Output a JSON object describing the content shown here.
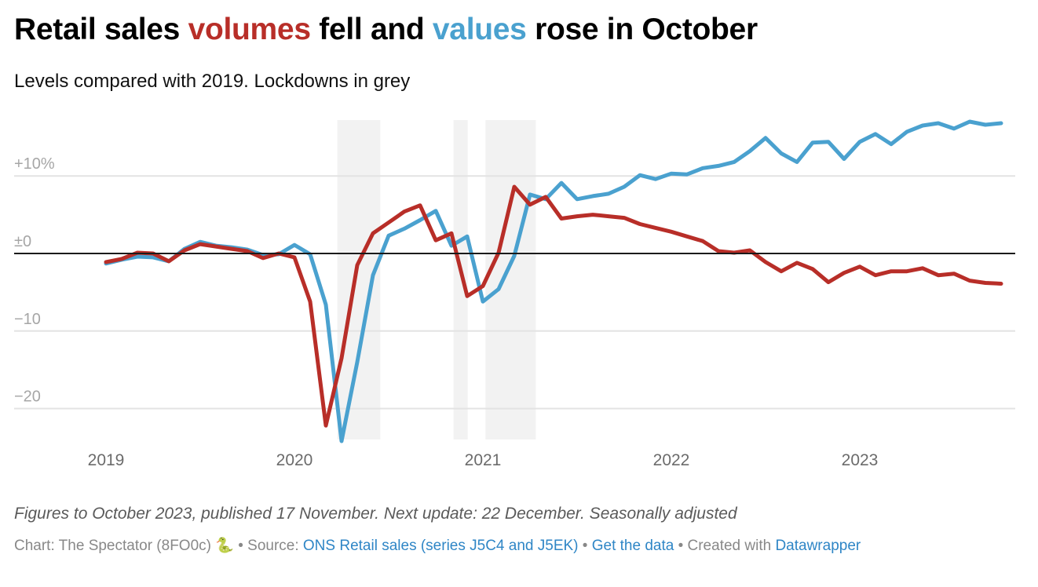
{
  "header": {
    "title_parts": [
      "Retail sales ",
      "volumes",
      " fell and ",
      "values",
      " rose in October"
    ],
    "subtitle": "Levels compared with 2019. Lockdowns in grey"
  },
  "notes": "Figures to October 2023, published 17 November. Next update: 22 December. Seasonally adjusted",
  "footer": {
    "chart_credit": "Chart: The Spectator (8FO0c)",
    "emoji": "🐍",
    "sep1": " • Source: ",
    "source_link": "ONS Retail sales (series J5C4 and J5EK)",
    "sep2": " • ",
    "data_link": "Get the data",
    "sep3": " • Created with ",
    "tool_link": "Datawrapper"
  },
  "colors": {
    "volumes": "#b82e28",
    "values": "#4aa1cf",
    "lockdown": "#f2f2f2",
    "grid": "#e3e3e3",
    "zero": "#1a1a1a"
  },
  "chart_data": {
    "type": "line",
    "title": "Retail sales volumes fell and values rose in October",
    "subtitle": "Levels compared with 2019. Lockdowns in grey",
    "xlabel": "",
    "ylabel": "",
    "x_start": "2019-01",
    "x_end": "2023-10",
    "x_ticks": [
      "2019",
      "2020",
      "2021",
      "2022",
      "2023"
    ],
    "y_ticks": [
      {
        "value": 10,
        "label": "+10%"
      },
      {
        "value": 0,
        "label": "±0"
      },
      {
        "value": -10,
        "label": "−10"
      },
      {
        "value": -20,
        "label": "−20"
      }
    ],
    "ylim": [
      -24.5,
      17.5
    ],
    "grid": true,
    "legend": "in-title",
    "lockdowns": [
      {
        "start": "2020-03-23",
        "end": "2020-06-15"
      },
      {
        "start": "2020-11-05",
        "end": "2020-12-02"
      },
      {
        "start": "2021-01-06",
        "end": "2021-04-12"
      }
    ],
    "series": [
      {
        "name": "values",
        "values": [
          -1.3,
          -0.8,
          -0.4,
          -0.5,
          -1.0,
          0.6,
          1.5,
          1.0,
          0.8,
          0.5,
          -0.2,
          -0.1,
          1.1,
          -0.1,
          -6.6,
          -24.2,
          -14.0,
          -2.8,
          2.3,
          3.2,
          4.3,
          5.5,
          1.0,
          2.2,
          -6.2,
          -4.6,
          -0.3,
          7.6,
          7.0,
          9.1,
          7.0,
          7.4,
          7.7,
          8.6,
          10.1,
          9.6,
          10.3,
          10.2,
          11.0,
          11.3,
          11.8,
          13.2,
          14.9,
          12.9,
          11.8,
          14.3,
          14.4,
          12.2,
          14.4,
          15.4,
          14.1,
          15.7,
          16.5,
          16.8,
          16.1,
          17.0,
          16.6,
          16.8
        ]
      },
      {
        "name": "volumes",
        "values": [
          -1.1,
          -0.7,
          0.1,
          0.0,
          -1.0,
          0.4,
          1.2,
          0.9,
          0.6,
          0.3,
          -0.6,
          0.0,
          -0.5,
          -6.2,
          -22.2,
          -13.5,
          -1.5,
          2.6,
          4.0,
          5.4,
          6.2,
          1.7,
          2.6,
          -5.5,
          -4.2,
          0.1,
          8.6,
          6.3,
          7.3,
          4.5,
          4.8,
          5.0,
          4.8,
          4.6,
          3.8,
          3.3,
          2.8,
          2.2,
          1.6,
          0.3,
          0.1,
          0.4,
          -1.1,
          -2.3,
          -1.2,
          -2.0,
          -3.7,
          -2.5,
          -1.7,
          -2.8,
          -2.3,
          -2.3,
          -1.9,
          -2.8,
          -2.6,
          -3.5,
          -3.8,
          -3.9
        ]
      }
    ]
  }
}
